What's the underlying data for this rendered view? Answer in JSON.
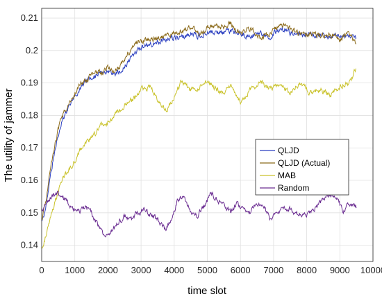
{
  "chart_data": {
    "type": "line",
    "xlabel": "time slot",
    "ylabel": "The utility of jammer",
    "xlim": [
      0,
      10000
    ],
    "ylim": [
      0.135,
      0.213
    ],
    "xticks": [
      0,
      1000,
      2000,
      3000,
      4000,
      5000,
      6000,
      7000,
      8000,
      9000,
      10000
    ],
    "yticks": [
      0.14,
      0.15,
      0.16,
      0.17,
      0.18,
      0.19,
      0.2,
      0.21
    ],
    "ytick_labels": [
      "0.14",
      "0.15",
      "0.16",
      "0.17",
      "0.18",
      "0.19",
      "0.2",
      "0.21"
    ],
    "grid": true,
    "legend_position": "right",
    "series": [
      {
        "name": "QLJD",
        "color": "#2b3fc0",
        "x": [
          0,
          100,
          250,
          400,
          600,
          800,
          1000,
          1200,
          1400,
          1600,
          1800,
          2000,
          2200,
          2400,
          2600,
          2800,
          3000,
          3300,
          3600,
          3900,
          4200,
          4500,
          4800,
          5100,
          5400,
          5700,
          6000,
          6300,
          6600,
          6900,
          7200,
          7500,
          7800,
          8100,
          8400,
          8700,
          9000,
          9300,
          9500
        ],
        "y": [
          0.147,
          0.15,
          0.16,
          0.17,
          0.178,
          0.182,
          0.186,
          0.189,
          0.191,
          0.192,
          0.193,
          0.194,
          0.193,
          0.194,
          0.196,
          0.199,
          0.201,
          0.202,
          0.203,
          0.204,
          0.204,
          0.205,
          0.2045,
          0.206,
          0.2055,
          0.206,
          0.205,
          0.2045,
          0.205,
          0.204,
          0.207,
          0.2055,
          0.205,
          0.2045,
          0.205,
          0.204,
          0.2045,
          0.204,
          0.204
        ]
      },
      {
        "name": "QLJD (Actual)",
        "color": "#8b6a1a",
        "x": [
          0,
          100,
          250,
          400,
          600,
          800,
          1000,
          1200,
          1400,
          1600,
          1800,
          2000,
          2200,
          2400,
          2600,
          2800,
          3000,
          3300,
          3600,
          3900,
          4200,
          4500,
          4800,
          5100,
          5400,
          5700,
          6000,
          6300,
          6600,
          6900,
          7200,
          7500,
          7800,
          8100,
          8400,
          8700,
          9000,
          9300,
          9500
        ],
        "y": [
          0.148,
          0.152,
          0.162,
          0.171,
          0.18,
          0.183,
          0.187,
          0.19,
          0.191,
          0.194,
          0.193,
          0.195,
          0.193,
          0.196,
          0.199,
          0.202,
          0.203,
          0.2035,
          0.204,
          0.205,
          0.206,
          0.2075,
          0.205,
          0.208,
          0.207,
          0.2085,
          0.205,
          0.207,
          0.204,
          0.205,
          0.208,
          0.2065,
          0.205,
          0.205,
          0.2045,
          0.205,
          0.2035,
          0.205,
          0.2025
        ]
      },
      {
        "name": "MAB",
        "color": "#c9c22a",
        "x": [
          0,
          100,
          200,
          400,
          600,
          800,
          1000,
          1200,
          1400,
          1600,
          1800,
          2000,
          2200,
          2400,
          2600,
          2800,
          3000,
          3300,
          3600,
          3800,
          4000,
          4200,
          4500,
          4800,
          5100,
          5400,
          5700,
          6000,
          6300,
          6600,
          6900,
          7200,
          7500,
          7800,
          8100,
          8400,
          8700,
          9000,
          9300,
          9500
        ],
        "y": [
          0.139,
          0.142,
          0.146,
          0.153,
          0.16,
          0.163,
          0.166,
          0.17,
          0.172,
          0.174,
          0.177,
          0.178,
          0.18,
          0.182,
          0.184,
          0.185,
          0.188,
          0.189,
          0.183,
          0.182,
          0.186,
          0.19,
          0.188,
          0.189,
          0.19,
          0.187,
          0.189,
          0.184,
          0.188,
          0.19,
          0.188,
          0.1895,
          0.187,
          0.19,
          0.187,
          0.188,
          0.186,
          0.189,
          0.19,
          0.195
        ]
      },
      {
        "name": "Random",
        "color": "#6a2c91",
        "x": [
          0,
          100,
          300,
          500,
          700,
          900,
          1100,
          1300,
          1500,
          1700,
          1900,
          2100,
          2300,
          2500,
          2700,
          2900,
          3100,
          3300,
          3500,
          3700,
          3900,
          4100,
          4300,
          4500,
          4700,
          4900,
          5100,
          5300,
          5500,
          5700,
          5900,
          6100,
          6300,
          6500,
          6700,
          6900,
          7100,
          7300,
          7500,
          7700,
          7900,
          8100,
          8300,
          8500,
          8700,
          8900,
          9100,
          9300,
          9500
        ],
        "y": [
          0.15,
          0.153,
          0.155,
          0.156,
          0.154,
          0.152,
          0.15,
          0.152,
          0.15,
          0.146,
          0.143,
          0.144,
          0.147,
          0.149,
          0.148,
          0.15,
          0.151,
          0.149,
          0.148,
          0.145,
          0.147,
          0.154,
          0.155,
          0.15,
          0.149,
          0.152,
          0.156,
          0.154,
          0.152,
          0.15,
          0.153,
          0.151,
          0.15,
          0.153,
          0.152,
          0.148,
          0.15,
          0.152,
          0.151,
          0.15,
          0.149,
          0.15,
          0.152,
          0.154,
          0.156,
          0.154,
          0.151,
          0.153,
          0.152
        ]
      }
    ]
  }
}
